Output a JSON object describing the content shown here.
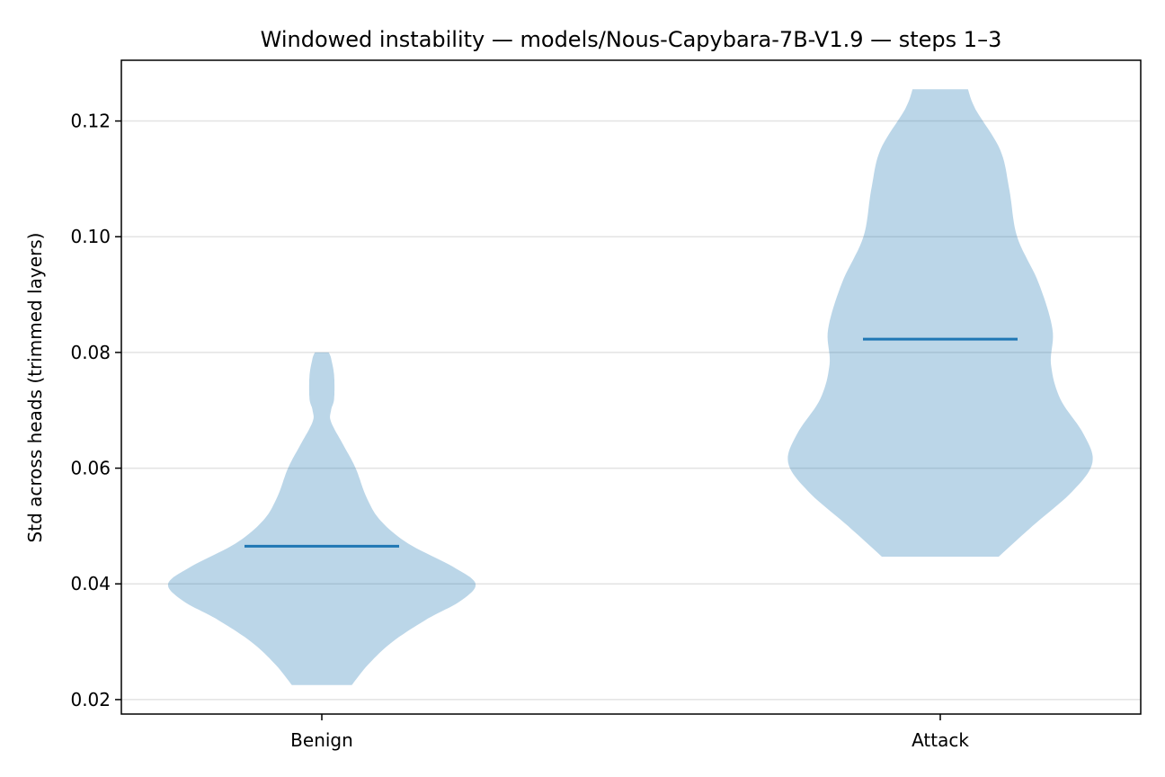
{
  "chart_data": {
    "type": "violin",
    "title": "Windowed instability — models/Nous-Capybara-7B-V1.9 — steps 1–3",
    "xlabel": "",
    "ylabel": "Std across heads (trimmed layers)",
    "categories": [
      "Benign",
      "Attack"
    ],
    "ylim": [
      0.0175,
      0.1305
    ],
    "yticks": [
      0.02,
      0.04,
      0.06,
      0.08,
      0.1,
      0.12
    ],
    "ytick_labels": [
      "0.02",
      "0.04",
      "0.06",
      "0.08",
      "0.10",
      "0.12"
    ],
    "grid": "y",
    "series": [
      {
        "category": "Benign",
        "min": 0.0225,
        "max": 0.08,
        "median": 0.0465,
        "density": [
          [
            0.0225,
            0.195
          ],
          [
            0.026,
            0.3
          ],
          [
            0.03,
            0.46
          ],
          [
            0.034,
            0.69
          ],
          [
            0.037,
            0.9
          ],
          [
            0.04,
            1.0
          ],
          [
            0.043,
            0.85
          ],
          [
            0.047,
            0.56
          ],
          [
            0.051,
            0.38
          ],
          [
            0.055,
            0.29
          ],
          [
            0.06,
            0.22
          ],
          [
            0.064,
            0.14
          ],
          [
            0.068,
            0.06
          ],
          [
            0.07,
            0.06
          ],
          [
            0.072,
            0.08
          ],
          [
            0.076,
            0.08
          ],
          [
            0.079,
            0.06
          ],
          [
            0.08,
            0.045
          ]
        ],
        "color": "#1f77b4"
      },
      {
        "category": "Attack",
        "min": 0.0447,
        "max": 0.1255,
        "median": 0.0823,
        "density": [
          [
            0.0447,
            0.38
          ],
          [
            0.05,
            0.6
          ],
          [
            0.056,
            0.86
          ],
          [
            0.061,
            0.99
          ],
          [
            0.066,
            0.93
          ],
          [
            0.072,
            0.78
          ],
          [
            0.078,
            0.72
          ],
          [
            0.084,
            0.73
          ],
          [
            0.092,
            0.64
          ],
          [
            0.1,
            0.5
          ],
          [
            0.108,
            0.45
          ],
          [
            0.115,
            0.39
          ],
          [
            0.122,
            0.23
          ],
          [
            0.1255,
            0.18
          ]
        ],
        "color": "#1f77b4"
      }
    ]
  }
}
